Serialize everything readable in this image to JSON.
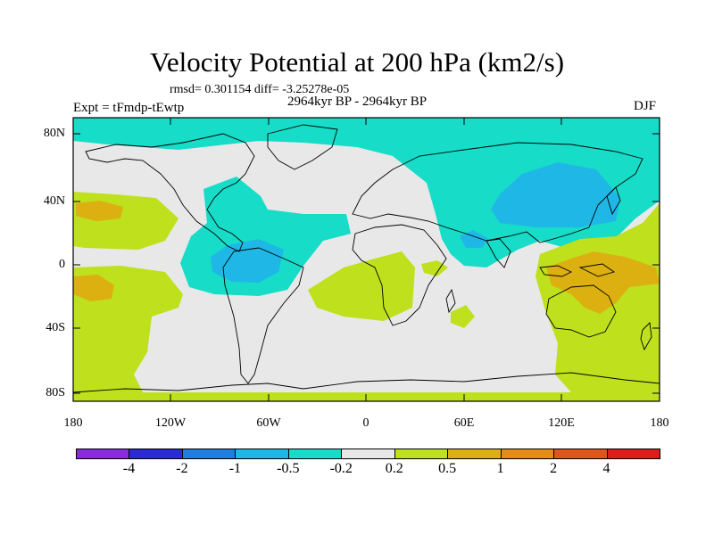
{
  "figure": {
    "title": "Velocity Potential at 200 hPa (km2/s)",
    "stats": "rmsd= 0.301154 diff= -3.25278e-05",
    "period": "2964kyr BP - 2964kyr BP",
    "experiment": "Expt = tFmdp-tEwtp",
    "season": "DJF"
  },
  "axes": {
    "lat_labels": [
      "80N",
      "40N",
      "0",
      "40S",
      "80S"
    ],
    "lon_labels": [
      "180",
      "120W",
      "60W",
      "0",
      "60E",
      "120E",
      "180"
    ]
  },
  "colorbar": {
    "colors": [
      "#8a2be2",
      "#2b2bd6",
      "#1f7fe0",
      "#1fb8e6",
      "#16dcc8",
      "#e8e8e8",
      "#bfe01c",
      "#dcb011",
      "#e58c17",
      "#e0551a",
      "#e01b1b"
    ],
    "labels": [
      "-4",
      "-2",
      "-1",
      "-0.5",
      "-0.2",
      "0.2",
      "0.5",
      "1",
      "2",
      "4"
    ]
  },
  "colors": {
    "background": "#e8e8e8",
    "neg_weak": "#16dcc8",
    "neg_mod": "#1fb8e6",
    "neg_strong": "#1f7fe0",
    "pos_weak": "#bfe01c",
    "pos_mod": "#dcb011",
    "pos_strong": "#e58c17"
  }
}
